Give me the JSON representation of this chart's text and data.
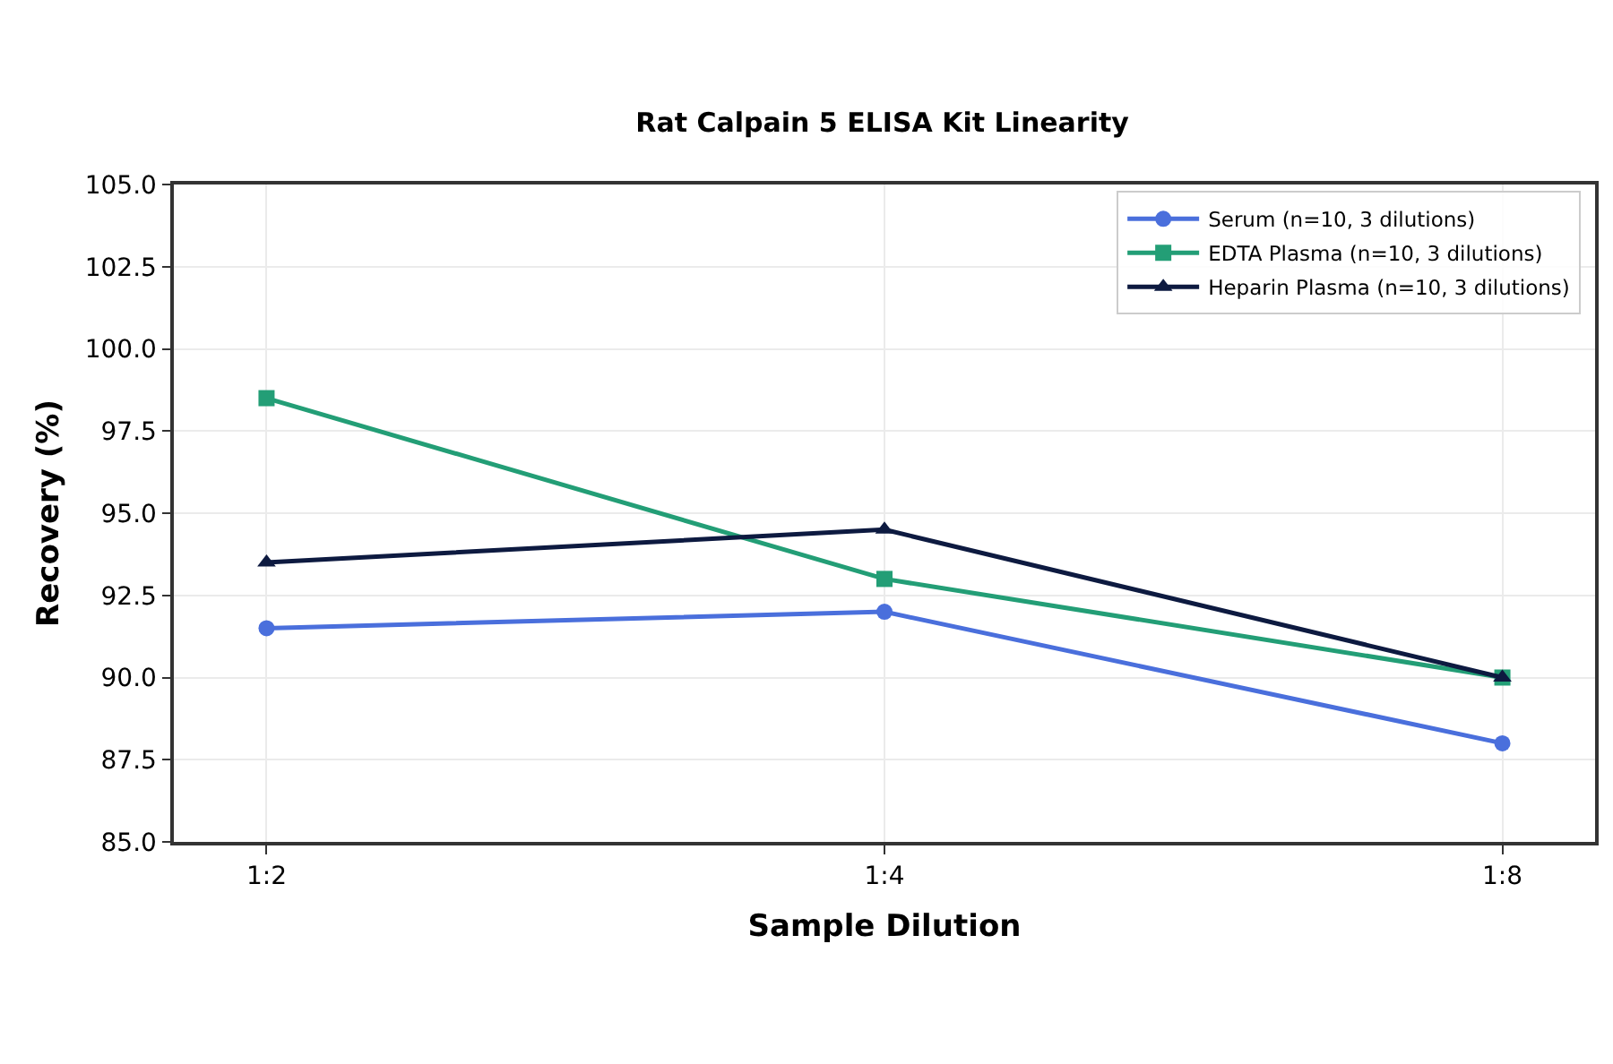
{
  "chart_data": {
    "type": "line",
    "title": "Rat Calpain 5 ELISA Kit Linearity",
    "xlabel": "Sample Dilution",
    "ylabel": "Recovery (%)",
    "categories": [
      "1:2",
      "1:4",
      "1:8"
    ],
    "series": [
      {
        "name": "Serum (n=10, 3 dilutions)",
        "color": "#4a6fdc",
        "marker": "circle",
        "values": [
          91.5,
          92.0,
          88.0
        ]
      },
      {
        "name": "EDTA Plasma (n=10, 3 dilutions)",
        "color": "#239e76",
        "marker": "square",
        "values": [
          98.5,
          93.0,
          90.0
        ]
      },
      {
        "name": "Heparin Plasma (n=10, 3 dilutions)",
        "color": "#0d1a40",
        "marker": "triangle",
        "values": [
          93.5,
          94.5,
          90.0
        ]
      }
    ],
    "ylim": [
      85,
      105
    ],
    "yticks": [
      {
        "value": 85,
        "label": "85.0"
      },
      {
        "value": 87.5,
        "label": "87.5"
      },
      {
        "value": 90,
        "label": "90.0"
      },
      {
        "value": 92.5,
        "label": "92.5"
      },
      {
        "value": 95,
        "label": "95.0"
      },
      {
        "value": 97.5,
        "label": "97.5"
      },
      {
        "value": 100,
        "label": "100.0"
      },
      {
        "value": 102.5,
        "label": "102.5"
      },
      {
        "value": 105,
        "label": "105.0"
      }
    ],
    "grid": true,
    "legend": "top right",
    "line_style": "solid"
  }
}
